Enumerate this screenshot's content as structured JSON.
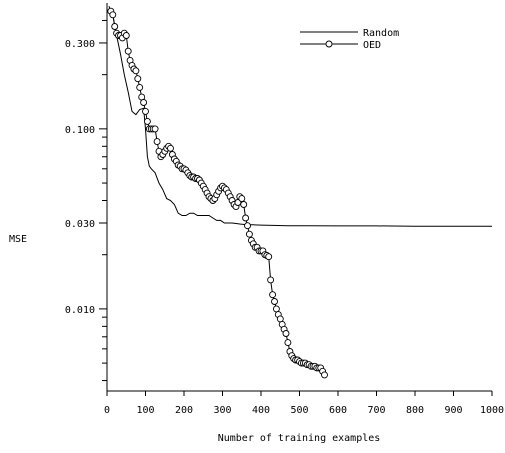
{
  "chart_data": {
    "type": "line",
    "title": "",
    "xlabel": "Number of training examples",
    "ylabel": "MSE",
    "xlim": [
      0,
      1000
    ],
    "ylim": [
      0.0035,
      0.5
    ],
    "yscale": "log",
    "grid": false,
    "legend_position": "top-right",
    "x_ticks": [
      0,
      100,
      200,
      300,
      400,
      500,
      600,
      700,
      800,
      900,
      1000
    ],
    "x_tick_labels": [
      "0",
      "100",
      "200",
      "300",
      "400",
      "500",
      "600",
      "700",
      "800",
      "900",
      "1000"
    ],
    "y_ticks": [
      0.01,
      0.03,
      0.1,
      0.3
    ],
    "y_tick_labels": [
      "0.010",
      "0.030",
      "0.100",
      "0.300"
    ],
    "y_minor_ticks": [
      0.004,
      0.005,
      0.006,
      0.007,
      0.008,
      0.009,
      0.02,
      0.04,
      0.05,
      0.06,
      0.07,
      0.08,
      0.09,
      0.2,
      0.4
    ],
    "series": [
      {
        "name": "Random",
        "style": "line",
        "color": "#000000",
        "x": [
          5,
          15,
          25,
          35,
          45,
          55,
          65,
          75,
          85,
          95,
          100,
          105,
          110,
          115,
          125,
          135,
          145,
          155,
          165,
          175,
          185,
          195,
          205,
          215,
          225,
          235,
          245,
          255,
          265,
          275,
          285,
          295,
          305,
          315,
          325,
          335,
          345,
          360,
          380,
          400,
          430,
          470,
          520,
          600,
          700,
          800,
          900,
          1000
        ],
        "y": [
          0.48,
          0.43,
          0.33,
          0.26,
          0.2,
          0.16,
          0.125,
          0.12,
          0.128,
          0.13,
          0.1,
          0.07,
          0.062,
          0.06,
          0.057,
          0.05,
          0.046,
          0.041,
          0.04,
          0.038,
          0.034,
          0.033,
          0.033,
          0.034,
          0.034,
          0.033,
          0.033,
          0.033,
          0.033,
          0.032,
          0.031,
          0.031,
          0.03,
          0.03,
          0.03,
          0.0298,
          0.0296,
          0.0294,
          0.0293,
          0.0292,
          0.0291,
          0.029,
          0.029,
          0.0289,
          0.0289,
          0.0288,
          0.0288,
          0.0288
        ]
      },
      {
        "name": "OED",
        "style": "line-markers",
        "marker": "open-circle",
        "color": "#000000",
        "x": [
          10,
          15,
          20,
          25,
          30,
          35,
          40,
          45,
          50,
          55,
          60,
          65,
          70,
          75,
          80,
          85,
          90,
          95,
          100,
          105,
          110,
          115,
          120,
          125,
          130,
          135,
          140,
          145,
          150,
          155,
          160,
          165,
          170,
          175,
          180,
          185,
          190,
          195,
          200,
          205,
          210,
          215,
          220,
          225,
          230,
          235,
          240,
          245,
          250,
          255,
          260,
          265,
          270,
          275,
          280,
          285,
          290,
          295,
          300,
          305,
          310,
          315,
          320,
          325,
          330,
          335,
          340,
          345,
          350,
          355,
          360,
          365,
          370,
          375,
          380,
          385,
          390,
          395,
          400,
          405,
          410,
          415,
          420,
          425,
          430,
          435,
          440,
          445,
          450,
          455,
          460,
          465,
          470,
          475,
          480,
          485,
          490,
          495,
          500,
          505,
          510,
          515,
          520,
          525,
          530,
          535,
          540,
          545,
          550,
          555,
          560,
          565
        ],
        "y": [
          0.45,
          0.43,
          0.37,
          0.34,
          0.33,
          0.33,
          0.32,
          0.34,
          0.33,
          0.27,
          0.24,
          0.225,
          0.215,
          0.21,
          0.19,
          0.17,
          0.15,
          0.14,
          0.125,
          0.11,
          0.1,
          0.1,
          0.1,
          0.1,
          0.085,
          0.075,
          0.07,
          0.072,
          0.075,
          0.078,
          0.08,
          0.078,
          0.072,
          0.068,
          0.066,
          0.063,
          0.062,
          0.06,
          0.06,
          0.059,
          0.057,
          0.055,
          0.054,
          0.054,
          0.053,
          0.053,
          0.052,
          0.05,
          0.048,
          0.046,
          0.044,
          0.042,
          0.041,
          0.04,
          0.041,
          0.043,
          0.045,
          0.047,
          0.048,
          0.047,
          0.046,
          0.044,
          0.042,
          0.04,
          0.038,
          0.037,
          0.039,
          0.042,
          0.041,
          0.038,
          0.032,
          0.029,
          0.026,
          0.024,
          0.023,
          0.022,
          0.022,
          0.021,
          0.021,
          0.021,
          0.02,
          0.0198,
          0.0195,
          0.0145,
          0.012,
          0.011,
          0.01,
          0.0093,
          0.0088,
          0.0082,
          0.0077,
          0.0073,
          0.0065,
          0.0058,
          0.0055,
          0.0053,
          0.0052,
          0.0052,
          0.0051,
          0.005,
          0.005,
          0.005,
          0.0049,
          0.0049,
          0.0048,
          0.0048,
          0.0048,
          0.0047,
          0.0047,
          0.0047,
          0.0045,
          0.0043
        ]
      }
    ]
  }
}
